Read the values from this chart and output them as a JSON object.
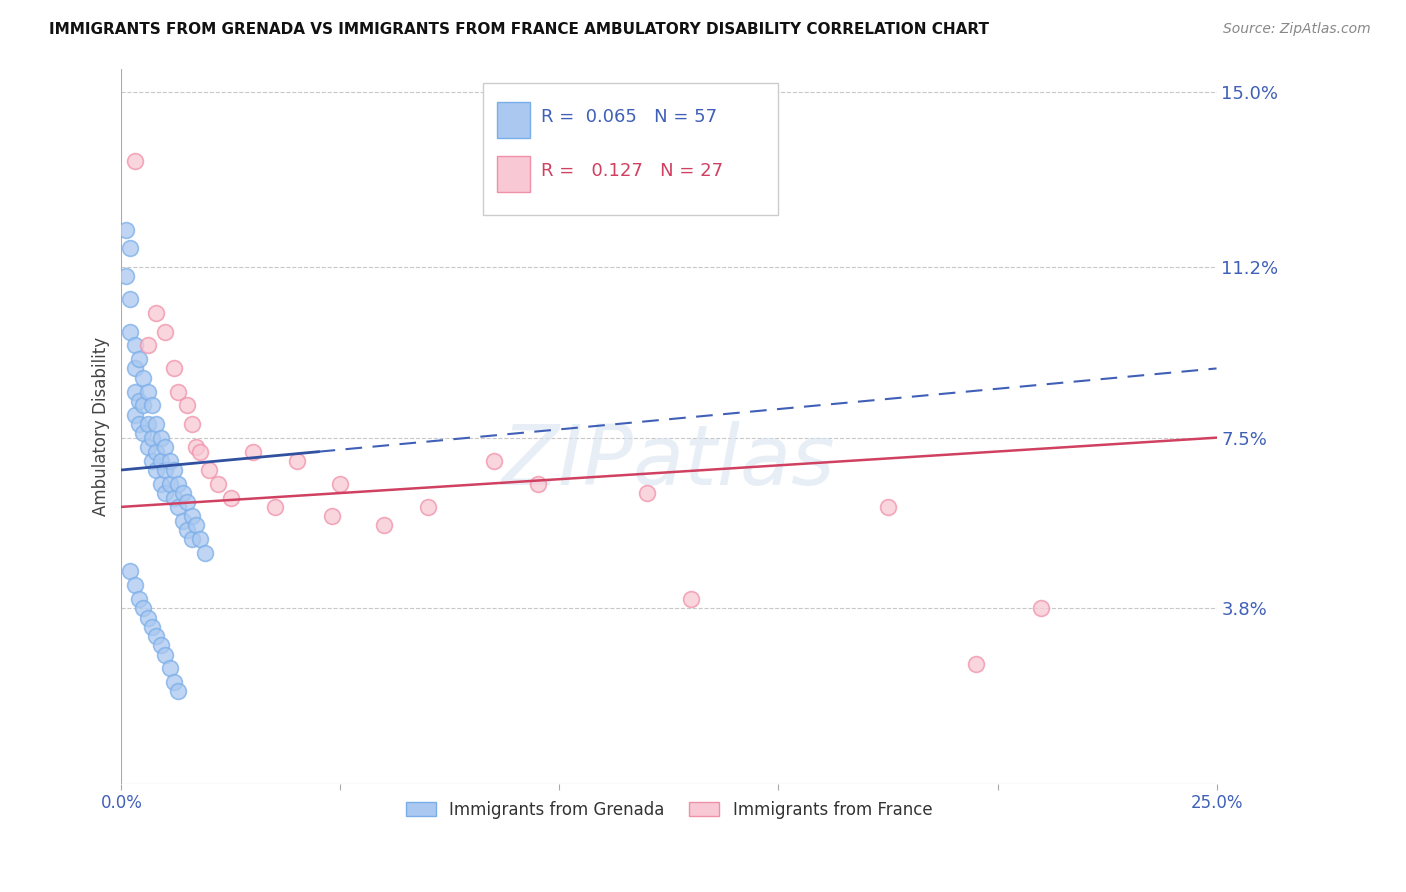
{
  "title": "IMMIGRANTS FROM GRENADA VS IMMIGRANTS FROM FRANCE AMBULATORY DISABILITY CORRELATION CHART",
  "source": "Source: ZipAtlas.com",
  "ylabel": "Ambulatory Disability",
  "xlim": [
    0.0,
    0.25
  ],
  "ylim": [
    0.0,
    0.155
  ],
  "ytick_labels_right": [
    "3.8%",
    "7.5%",
    "11.2%",
    "15.0%"
  ],
  "ytick_vals_right": [
    0.038,
    0.075,
    0.112,
    0.15
  ],
  "grid_color": "#c8c8c8",
  "background_color": "#ffffff",
  "series1_label": "Immigrants from Grenada",
  "series1_color": "#aac8f0",
  "series1_edge": "#7aaee8",
  "series1_R": "0.065",
  "series1_N": "57",
  "series2_label": "Immigrants from France",
  "series2_color": "#f8c8d4",
  "series2_edge": "#f090a8",
  "series2_R": "0.127",
  "series2_N": "27",
  "trend1_color": "#4060b8",
  "trend1_solid_color": "#3050a0",
  "trend2_color": "#d04060",
  "grenada_x": [
    0.001,
    0.001,
    0.002,
    0.002,
    0.002,
    0.003,
    0.003,
    0.003,
    0.003,
    0.004,
    0.004,
    0.004,
    0.005,
    0.005,
    0.005,
    0.006,
    0.006,
    0.006,
    0.007,
    0.007,
    0.007,
    0.008,
    0.008,
    0.008,
    0.009,
    0.009,
    0.009,
    0.01,
    0.01,
    0.01,
    0.011,
    0.011,
    0.012,
    0.012,
    0.013,
    0.013,
    0.014,
    0.014,
    0.015,
    0.015,
    0.016,
    0.016,
    0.017,
    0.018,
    0.019,
    0.002,
    0.003,
    0.004,
    0.005,
    0.006,
    0.007,
    0.008,
    0.009,
    0.01,
    0.011,
    0.012,
    0.013
  ],
  "grenada_y": [
    0.12,
    0.11,
    0.116,
    0.105,
    0.098,
    0.095,
    0.09,
    0.085,
    0.08,
    0.092,
    0.083,
    0.078,
    0.088,
    0.082,
    0.076,
    0.085,
    0.078,
    0.073,
    0.082,
    0.075,
    0.07,
    0.078,
    0.072,
    0.068,
    0.075,
    0.07,
    0.065,
    0.073,
    0.068,
    0.063,
    0.07,
    0.065,
    0.068,
    0.062,
    0.065,
    0.06,
    0.063,
    0.057,
    0.061,
    0.055,
    0.058,
    0.053,
    0.056,
    0.053,
    0.05,
    0.046,
    0.043,
    0.04,
    0.038,
    0.036,
    0.034,
    0.032,
    0.03,
    0.028,
    0.025,
    0.022,
    0.02
  ],
  "france_x": [
    0.003,
    0.006,
    0.008,
    0.01,
    0.012,
    0.013,
    0.015,
    0.016,
    0.017,
    0.018,
    0.02,
    0.022,
    0.025,
    0.03,
    0.035,
    0.04,
    0.048,
    0.05,
    0.06,
    0.07,
    0.085,
    0.095,
    0.12,
    0.13,
    0.175,
    0.195,
    0.21
  ],
  "france_y": [
    0.135,
    0.095,
    0.102,
    0.098,
    0.09,
    0.085,
    0.082,
    0.078,
    0.073,
    0.072,
    0.068,
    0.065,
    0.062,
    0.072,
    0.06,
    0.07,
    0.058,
    0.065,
    0.056,
    0.06,
    0.07,
    0.065,
    0.063,
    0.04,
    0.06,
    0.026,
    0.038
  ],
  "trend1_x": [
    0.0,
    0.05,
    0.25
  ],
  "trend1_y_solid_start": 0.068,
  "trend1_y_at_005": 0.076,
  "trend1_y_end": 0.09,
  "trend2_y_start": 0.06,
  "trend2_y_end": 0.075,
  "watermark": "ZIPatlas"
}
